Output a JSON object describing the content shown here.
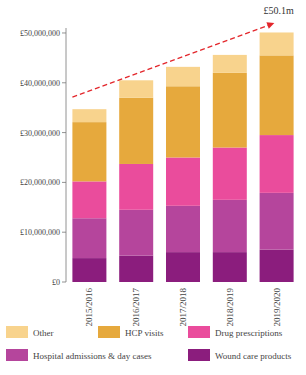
{
  "chart_data": {
    "type": "bar",
    "stacked": true,
    "grid": false,
    "legend": "bottom",
    "categories": [
      "2015/2016",
      "2016/2017",
      "2017/2018",
      "2018/2019",
      "2019/2020"
    ],
    "series": [
      {
        "name": "Wound care products",
        "color": "#8b1d7d",
        "values": [
          4800000,
          5300000,
          6000000,
          6000000,
          6500000
        ]
      },
      {
        "name": "Hospital admissions & day cases",
        "color": "#b5459c",
        "values": [
          8000000,
          9200000,
          9300000,
          10500000,
          11400000
        ]
      },
      {
        "name": "Drug prescriptions",
        "color": "#ea4c9c",
        "values": [
          7400000,
          9200000,
          9700000,
          10500000,
          11600000
        ]
      },
      {
        "name": "HCP visits",
        "color": "#e6a93d",
        "values": [
          11900000,
          13300000,
          14300000,
          15000000,
          16000000
        ]
      },
      {
        "name": "Other",
        "color": "#f8d38d",
        "values": [
          2600000,
          3500000,
          3900000,
          3600000,
          4600000
        ]
      }
    ],
    "ylim": [
      0,
      51000000
    ],
    "yticks": [
      {
        "value": 0,
        "label": "£0"
      },
      {
        "value": 10000000,
        "label": "£10,000,000"
      },
      {
        "value": 20000000,
        "label": "£20,000,000"
      },
      {
        "value": 30000000,
        "label": "£30,000,000"
      },
      {
        "value": 40000000,
        "label": "£40,000,000"
      },
      {
        "value": 50000000,
        "label": "£50,000,000"
      }
    ],
    "annotations": [
      {
        "text": "£50.1m"
      }
    ]
  }
}
